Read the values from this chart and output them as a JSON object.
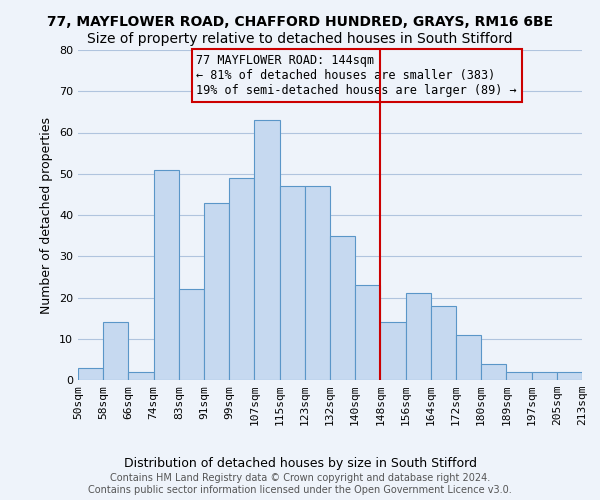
{
  "title1": "77, MAYFLOWER ROAD, CHAFFORD HUNDRED, GRAYS, RM16 6BE",
  "title2": "Size of property relative to detached houses in South Stifford",
  "xlabel": "Distribution of detached houses by size in South Stifford",
  "ylabel": "Number of detached properties",
  "footer": "Contains HM Land Registry data © Crown copyright and database right 2024.\nContains public sector information licensed under the Open Government Licence v3.0.",
  "bin_labels": [
    "50sqm",
    "58sqm",
    "66sqm",
    "74sqm",
    "83sqm",
    "91sqm",
    "99sqm",
    "107sqm",
    "115sqm",
    "123sqm",
    "132sqm",
    "140sqm",
    "148sqm",
    "156sqm",
    "164sqm",
    "172sqm",
    "180sqm",
    "189sqm",
    "197sqm",
    "205sqm",
    "213sqm"
  ],
  "bar_values": [
    3,
    14,
    2,
    51,
    22,
    43,
    49,
    63,
    47,
    47,
    35,
    23,
    14,
    21,
    18,
    11,
    4,
    2,
    2,
    2
  ],
  "bar_color": "#c6d9f0",
  "bar_edge_color": "#5a96c8",
  "grid_color": "#b0c4de",
  "background_color": "#eef3fa",
  "vline_x": 11.5,
  "vline_color": "#cc0000",
  "annotation_text": "77 MAYFLOWER ROAD: 144sqm\n← 81% of detached houses are smaller (383)\n19% of semi-detached houses are larger (89) →",
  "annotation_box_color": "#cc0000",
  "ylim": [
    0,
    80
  ],
  "yticks": [
    0,
    10,
    20,
    30,
    40,
    50,
    60,
    70,
    80
  ],
  "title1_fontsize": 10,
  "title2_fontsize": 10,
  "xlabel_fontsize": 9,
  "ylabel_fontsize": 9,
  "tick_fontsize": 8,
  "annotation_fontsize": 8.5,
  "footer_fontsize": 7
}
